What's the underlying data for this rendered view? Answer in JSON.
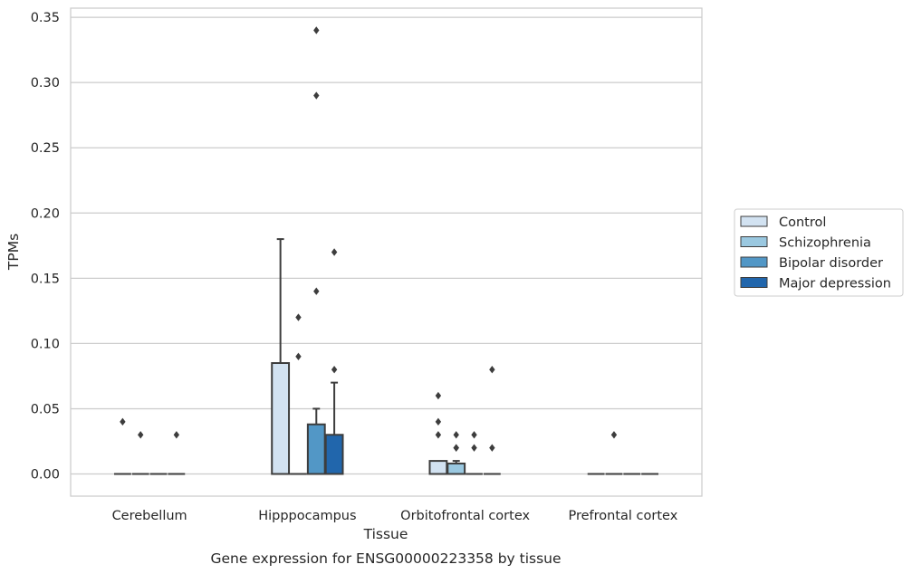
{
  "chart_data": {
    "type": "box",
    "title": "",
    "caption": "Gene expression for ENSG00000223358 by tissue",
    "xlabel": "Tissue",
    "ylabel": "TPMs",
    "ylim": [
      -0.017,
      0.357
    ],
    "yticks": [
      "0.00",
      "0.05",
      "0.10",
      "0.15",
      "0.20",
      "0.25",
      "0.30",
      "0.35"
    ],
    "grid": "horizontal",
    "legend_position": "right",
    "categories": [
      "Cerebellum",
      "Hipppocampus",
      "Orbitofrontal cortex",
      "Prefrontal cortex"
    ],
    "series": [
      {
        "name": "Control",
        "color": "#d2e2f1",
        "boxes": [
          {
            "q1": 0,
            "median": 0,
            "q3": 0,
            "whisker_low": 0,
            "whisker_high": 0,
            "outliers": [
              0.04
            ]
          },
          {
            "q1": 0,
            "median": 0,
            "q3": 0.085,
            "whisker_low": 0,
            "whisker_high": 0.18,
            "outliers": []
          },
          {
            "q1": 0,
            "median": 0,
            "q3": 0.01,
            "whisker_low": 0,
            "whisker_high": 0.01,
            "outliers": [
              0.06,
              0.04,
              0.03
            ]
          },
          {
            "q1": 0,
            "median": 0,
            "q3": 0,
            "whisker_low": 0,
            "whisker_high": 0,
            "outliers": []
          }
        ]
      },
      {
        "name": "Schizophrenia",
        "color": "#9ac8e0",
        "boxes": [
          {
            "q1": 0,
            "median": 0,
            "q3": 0,
            "whisker_low": 0,
            "whisker_high": 0,
            "outliers": [
              0.03
            ]
          },
          {
            "q1": 0,
            "median": 0,
            "q3": 0,
            "whisker_low": 0,
            "whisker_high": 0,
            "outliers": [
              0.12,
              0.09
            ]
          },
          {
            "q1": 0,
            "median": 0,
            "q3": 0.008,
            "whisker_low": 0,
            "whisker_high": 0.01,
            "outliers": [
              0.03,
              0.02,
              0.02
            ]
          },
          {
            "q1": 0,
            "median": 0,
            "q3": 0,
            "whisker_low": 0,
            "whisker_high": 0,
            "outliers": [
              0.03
            ]
          }
        ]
      },
      {
        "name": "Bipolar disorder",
        "color": "#5297c6",
        "boxes": [
          {
            "q1": 0,
            "median": 0,
            "q3": 0,
            "whisker_low": 0,
            "whisker_high": 0,
            "outliers": []
          },
          {
            "q1": 0,
            "median": 0,
            "q3": 0.038,
            "whisker_low": 0,
            "whisker_high": 0.05,
            "outliers": [
              0.34,
              0.29,
              0.14
            ]
          },
          {
            "q1": 0,
            "median": 0,
            "q3": 0,
            "whisker_low": 0,
            "whisker_high": 0,
            "outliers": [
              0.03,
              0.02
            ]
          },
          {
            "q1": 0,
            "median": 0,
            "q3": 0,
            "whisker_low": 0,
            "whisker_high": 0,
            "outliers": []
          }
        ]
      },
      {
        "name": "Major depression",
        "color": "#2166ac",
        "boxes": [
          {
            "q1": 0,
            "median": 0,
            "q3": 0,
            "whisker_low": 0,
            "whisker_high": 0,
            "outliers": [
              0.03
            ]
          },
          {
            "q1": 0,
            "median": 0,
            "q3": 0.03,
            "whisker_low": 0,
            "whisker_high": 0.07,
            "outliers": [
              0.17,
              0.08
            ]
          },
          {
            "q1": 0,
            "median": 0,
            "q3": 0,
            "whisker_low": 0,
            "whisker_high": 0,
            "outliers": [
              0.08,
              0.02
            ]
          },
          {
            "q1": 0,
            "median": 0,
            "q3": 0,
            "whisker_low": 0,
            "whisker_high": 0,
            "outliers": []
          }
        ]
      }
    ]
  }
}
